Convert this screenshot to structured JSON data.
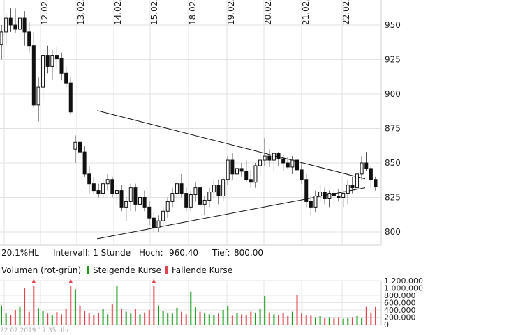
{
  "info": {
    "range": "20,1%HL",
    "interval": "Intervall: 1 Stunde",
    "high_label": "Hoch:",
    "high_value": "960,40",
    "low_label": "Tief:",
    "low_value": "800,00"
  },
  "volume_legend": {
    "title": "Volumen (rot-grün)",
    "rising": "Steigende Kurse",
    "falling": "Fallende Kurse",
    "rising_color": "#1a9b1a",
    "falling_color": "#e0454d"
  },
  "timestamp": "22.02.2019 17:35 Uhr",
  "chart_data": [
    {
      "type": "candlestick",
      "x_ticks": [
        "12.02.",
        "13.02.",
        "14.02.",
        "15.02.",
        "18.02.",
        "19.02.",
        "20.02.",
        "21.02.",
        "22.02."
      ],
      "y_ticks": [
        "950",
        "925",
        "900",
        "875",
        "850",
        "825",
        "800"
      ],
      "ylim": [
        793,
        965
      ],
      "grid": true,
      "candle_color": "#111111",
      "trendlines": [
        {
          "x_start": 13.55,
          "y_start": 888,
          "x_end": 20.6,
          "y_end": 838.5
        },
        {
          "x_start": 13.55,
          "y_start": 795,
          "x_end": 20.6,
          "y_end": 832
        }
      ],
      "candles": [
        [
          936,
          950,
          925,
          945
        ],
        [
          945,
          958,
          935,
          955
        ],
        [
          955,
          962,
          945,
          950
        ],
        [
          950,
          962,
          944,
          947
        ],
        [
          947,
          958,
          940,
          955
        ],
        [
          955,
          960,
          935,
          945
        ],
        [
          945,
          952,
          930,
          935
        ],
        [
          935,
          945,
          890,
          892
        ],
        [
          892,
          912,
          880,
          905
        ],
        [
          905,
          932,
          895,
          928
        ],
        [
          928,
          935,
          915,
          920
        ],
        [
          920,
          932,
          910,
          928
        ],
        [
          928,
          934,
          918,
          926
        ],
        [
          926,
          930,
          910,
          915
        ],
        [
          915,
          920,
          905,
          908
        ],
        [
          908,
          912,
          885,
          887
        ],
        [
          860,
          870,
          850,
          865
        ],
        [
          865,
          870,
          855,
          858
        ],
        [
          858,
          862,
          840,
          842
        ],
        [
          842,
          848,
          828,
          835
        ],
        [
          835,
          840,
          828,
          830
        ],
        [
          830,
          835,
          825,
          828
        ],
        [
          828,
          838,
          825,
          835
        ],
        [
          835,
          842,
          830,
          838
        ],
        [
          838,
          840,
          825,
          828
        ],
        [
          828,
          834,
          820,
          830
        ],
        [
          830,
          834,
          815,
          818
        ],
        [
          818,
          825,
          808,
          822
        ],
        [
          822,
          835,
          815,
          832
        ],
        [
          832,
          835,
          815,
          820
        ],
        [
          820,
          826,
          812,
          825
        ],
        [
          825,
          830,
          815,
          818
        ],
        [
          818,
          822,
          805,
          810
        ],
        [
          810,
          814,
          800,
          803
        ],
        [
          803,
          812,
          800,
          808
        ],
        [
          808,
          818,
          804,
          815
        ],
        [
          815,
          825,
          810,
          822
        ],
        [
          822,
          832,
          818,
          828
        ],
        [
          828,
          840,
          822,
          835
        ],
        [
          835,
          842,
          825,
          828
        ],
        [
          828,
          832,
          815,
          818
        ],
        [
          818,
          830,
          815,
          827
        ],
        [
          827,
          836,
          822,
          832
        ],
        [
          832,
          835,
          818,
          820
        ],
        [
          820,
          826,
          812,
          823
        ],
        [
          823,
          832,
          818,
          829
        ],
        [
          829,
          838,
          824,
          834
        ],
        [
          834,
          838,
          820,
          826
        ],
        [
          826,
          840,
          822,
          838
        ],
        [
          838,
          855,
          834,
          852
        ],
        [
          852,
          857,
          838,
          842
        ],
        [
          842,
          850,
          836,
          846
        ],
        [
          846,
          850,
          840,
          844
        ],
        [
          844,
          852,
          836,
          838
        ],
        [
          838,
          845,
          832,
          836
        ],
        [
          836,
          850,
          832,
          848
        ],
        [
          848,
          858,
          842,
          852
        ],
        [
          852,
          868,
          848,
          855
        ],
        [
          855,
          860,
          847,
          852
        ],
        [
          852,
          858,
          844,
          857
        ],
        [
          857,
          858,
          848,
          853
        ],
        [
          853,
          856,
          844,
          850
        ],
        [
          850,
          854,
          846,
          847
        ],
        [
          847,
          855,
          842,
          852
        ],
        [
          852,
          854,
          840,
          845
        ],
        [
          845,
          850,
          835,
          838
        ],
        [
          838,
          842,
          818,
          822
        ],
        [
          822,
          826,
          812,
          818
        ],
        [
          818,
          830,
          814,
          826
        ],
        [
          826,
          834,
          822,
          829
        ],
        [
          829,
          832,
          820,
          824
        ],
        [
          824,
          830,
          818,
          828
        ],
        [
          828,
          831,
          820,
          826
        ],
        [
          826,
          831,
          822,
          825
        ],
        [
          825,
          830,
          818,
          828
        ],
        [
          828,
          838,
          820,
          834
        ],
        [
          834,
          840,
          828,
          832
        ],
        [
          832,
          846,
          828,
          842
        ],
        [
          842,
          855,
          838,
          850
        ],
        [
          850,
          858,
          844,
          846
        ],
        [
          846,
          848,
          832,
          838
        ],
        [
          838,
          840,
          830,
          833
        ]
      ],
      "volume": {
        "y_ticks": [
          "1.200.000",
          "1.000.000",
          "800.000",
          "600.000",
          "400.000",
          "200.000",
          "0"
        ],
        "ylim": [
          0,
          1200000
        ],
        "values": [
          520000,
          300000,
          250000,
          400000,
          480000,
          1000000,
          350000,
          1060000,
          450000,
          380000,
          300000,
          260000,
          340000,
          280000,
          420000,
          1060000,
          960000,
          520000,
          380000,
          300000,
          260000,
          320000,
          430000,
          280000,
          550000,
          1060000,
          420000,
          350000,
          300000,
          420000,
          280000,
          330000,
          400000,
          1060000,
          520000,
          380000,
          320000,
          300000,
          460000,
          350000,
          280000,
          900000,
          470000,
          350000,
          300000,
          280000,
          260000,
          300000,
          400000,
          500000,
          240000,
          320000,
          280000,
          260000,
          350000,
          320000,
          420000,
          780000,
          330000,
          280000,
          260000,
          310000,
          230000,
          350000,
          800000,
          300000,
          260000,
          240000,
          200000,
          230000,
          180000,
          200000,
          180000,
          200000,
          160000,
          170000,
          200000,
          230000,
          180000,
          480000,
          320000,
          480000
        ],
        "high_markers": [
          7,
          15,
          33
        ]
      }
    }
  ]
}
